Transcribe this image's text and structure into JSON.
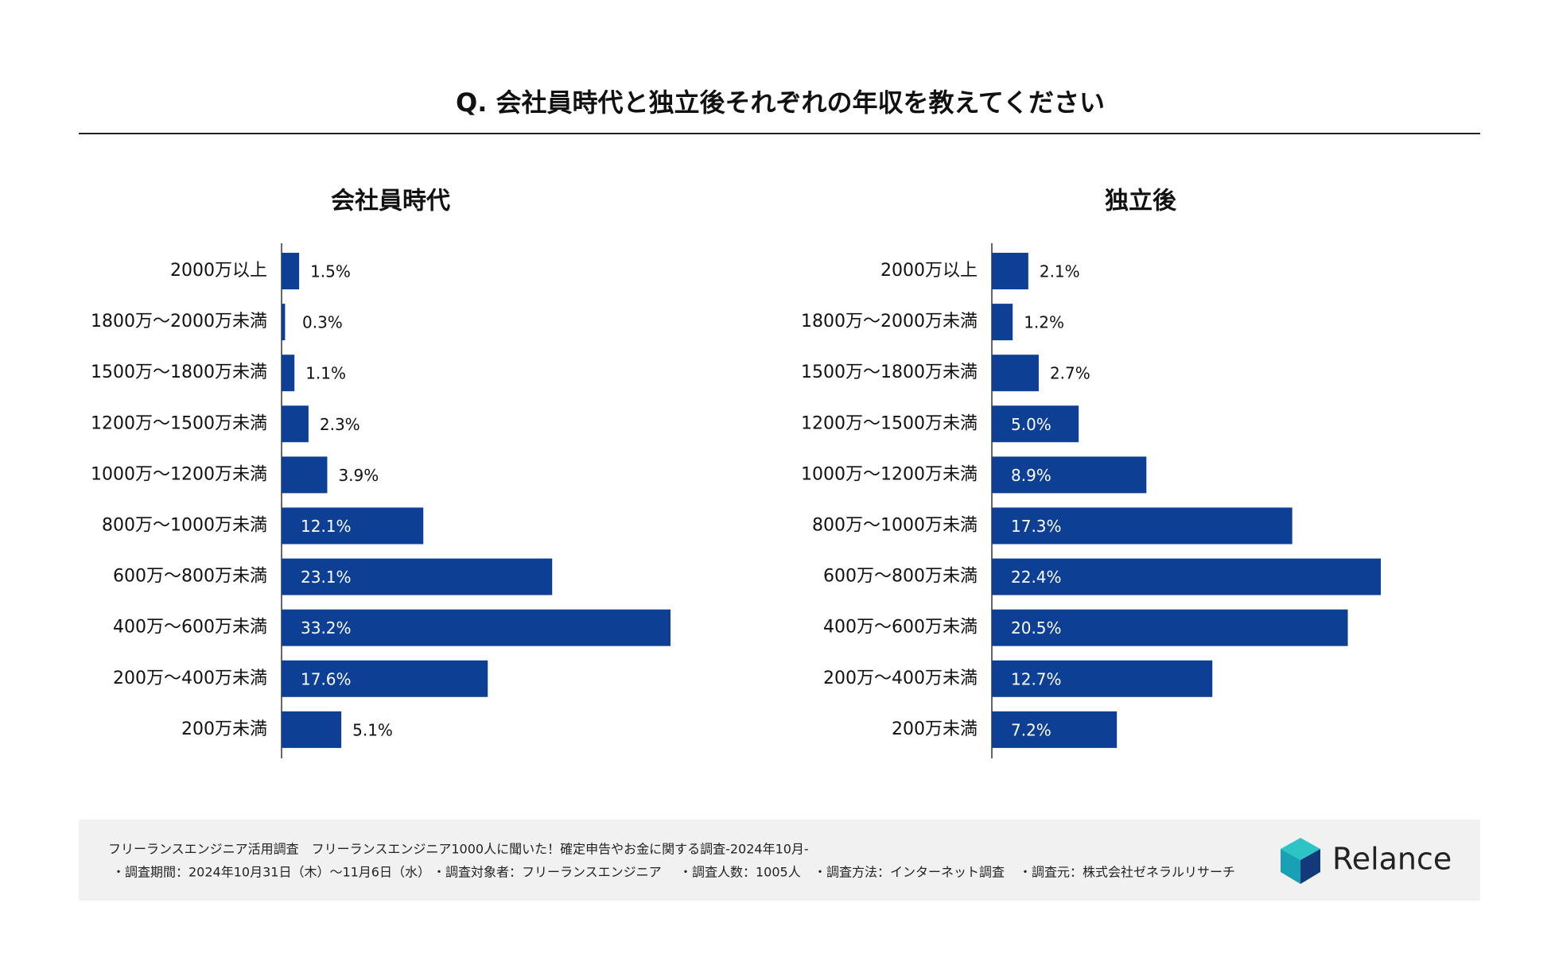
{
  "title": "Q. 会社員時代と独立後それぞれの年収を教えてください",
  "chart_data": [
    {
      "type": "bar",
      "orientation": "horizontal",
      "title": "会社員時代",
      "color": "#0d3f94",
      "categories": [
        "2000万以上",
        "1800万～2000万未満",
        "1500万～1800万未満",
        "1200万～1500万未満",
        "1000万～1200万未満",
        "800万～1000万未満",
        "600万～800万未満",
        "400万～600万未満",
        "200万～400万未満",
        "200万未満"
      ],
      "values": [
        1.5,
        0.3,
        1.1,
        2.3,
        3.9,
        12.1,
        23.1,
        33.2,
        17.6,
        5.1
      ],
      "value_labels": [
        "1.5%",
        "0.3%",
        "1.1%",
        "2.3%",
        "3.9%",
        "12.1%",
        "23.1%",
        "33.2%",
        "17.6%",
        "5.1%"
      ]
    },
    {
      "type": "bar",
      "orientation": "horizontal",
      "title": "独立後",
      "color": "#0d3f94",
      "categories": [
        "2000万以上",
        "1800万～2000万未満",
        "1500万～1800万未満",
        "1200万～1500万未満",
        "1000万～1200万未満",
        "800万～1000万未満",
        "600万～800万未満",
        "400万～600万未満",
        "200万～400万未満",
        "200万未満"
      ],
      "values": [
        2.1,
        1.2,
        2.7,
        5.0,
        8.9,
        17.3,
        22.4,
        20.5,
        12.7,
        7.2
      ],
      "value_labels": [
        "2.1%",
        "1.2%",
        "2.7%",
        "5.0%",
        "8.9%",
        "17.3%",
        "22.4%",
        "20.5%",
        "12.7%",
        "7.2%"
      ]
    }
  ],
  "footer": {
    "survey": "フリーランスエンジニア活用調査　フリーランスエンジニア1000人に聞いた！確定申告やお金に関する調査-2024年10月-",
    "details": [
      "・調査期間：2024年10月31日（木）～11月6日（水）",
      "・調査対象者：フリーランスエンジニア",
      "・調査人数：1005人",
      "・調査方法：インターネット調査",
      "・調査元：株式会社ゼネラルリサーチ"
    ],
    "logo": "Relance"
  }
}
